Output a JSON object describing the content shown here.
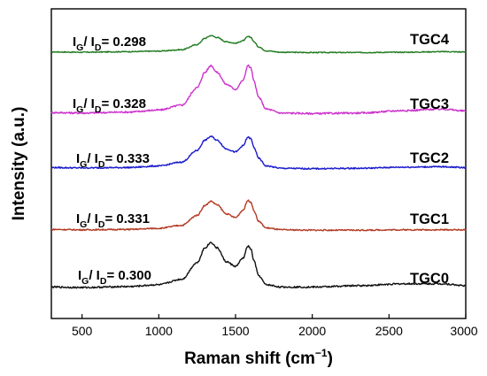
{
  "chart_data": {
    "type": "line",
    "title": "",
    "xlabel": "Raman shift (cm",
    "xlabel_sup": "−1",
    "xlabel_close": ")",
    "ylabel": "Intensity (a.u.)",
    "xlim": [
      300,
      3000
    ],
    "x_ticks": [
      500,
      1000,
      1500,
      2000,
      2500,
      3000
    ],
    "y_ticks_shown": false,
    "grid": false,
    "legend": "none",
    "series": [
      {
        "name": "TGC4",
        "color": "#1f7a1f",
        "ratio": {
          "g": "G",
          "d": "D",
          "sep": "/ I",
          "text": "= 0.298"
        },
        "x": [
          300,
          500,
          800,
          1000,
          1150,
          1250,
          1300,
          1340,
          1380,
          1440,
          1500,
          1550,
          1580,
          1600,
          1620,
          1650,
          1700,
          1800,
          2000,
          2300,
          2600,
          2850,
          3000
        ],
        "y": [
          0.04,
          0.03,
          0.05,
          0.07,
          0.12,
          0.3,
          0.52,
          0.62,
          0.55,
          0.4,
          0.35,
          0.44,
          0.58,
          0.56,
          0.4,
          0.22,
          0.08,
          0.03,
          0.02,
          0.02,
          0.03,
          0.05,
          0.04
        ]
      },
      {
        "name": "TGC3",
        "color": "#cc33cc",
        "ratio": {
          "g": "G",
          "d": "D",
          "sep": "/ I",
          "text": "= 0.328"
        },
        "x": [
          300,
          500,
          800,
          1000,
          1150,
          1250,
          1300,
          1340,
          1380,
          1440,
          1500,
          1550,
          1580,
          1600,
          1620,
          1650,
          1700,
          1800,
          2000,
          2300,
          2600,
          2850,
          3000
        ],
        "y": [
          0.05,
          0.04,
          0.06,
          0.1,
          0.2,
          0.55,
          0.86,
          1.0,
          0.86,
          0.62,
          0.52,
          0.7,
          1.0,
          0.95,
          0.68,
          0.36,
          0.12,
          0.04,
          0.03,
          0.04,
          0.09,
          0.12,
          0.08
        ]
      },
      {
        "name": "TGC2",
        "color": "#1a1acc",
        "ratio": {
          "g": "G",
          "d": "D",
          "sep": "/ I",
          "text": "= 0.333"
        },
        "x": [
          300,
          500,
          800,
          1000,
          1150,
          1250,
          1300,
          1340,
          1380,
          1440,
          1500,
          1550,
          1580,
          1600,
          1620,
          1650,
          1700,
          1800,
          2000,
          2300,
          2600,
          2850,
          3000
        ],
        "y": [
          0.06,
          0.05,
          0.06,
          0.1,
          0.2,
          0.5,
          0.76,
          0.86,
          0.76,
          0.54,
          0.46,
          0.62,
          0.84,
          0.8,
          0.58,
          0.3,
          0.1,
          0.04,
          0.03,
          0.04,
          0.07,
          0.08,
          0.06
        ]
      },
      {
        "name": "TGC1",
        "color": "#b33a22",
        "ratio": {
          "g": "G",
          "d": "D",
          "sep": "/ I",
          "text": "= 0.331"
        },
        "x": [
          300,
          500,
          800,
          1000,
          1150,
          1250,
          1300,
          1340,
          1380,
          1440,
          1500,
          1550,
          1580,
          1600,
          1620,
          1650,
          1700,
          1800,
          2000,
          2300,
          2600,
          2850,
          3000
        ],
        "y": [
          0.04,
          0.03,
          0.04,
          0.07,
          0.15,
          0.42,
          0.68,
          0.8,
          0.7,
          0.46,
          0.36,
          0.56,
          0.82,
          0.78,
          0.54,
          0.26,
          0.08,
          0.03,
          0.02,
          0.02,
          0.03,
          0.03,
          0.03
        ]
      },
      {
        "name": "TGC0",
        "color": "#111111",
        "ratio": {
          "g": "G",
          "d": "D",
          "sep": "/ I",
          "text": "= 0.300"
        },
        "x": [
          300,
          500,
          800,
          1000,
          1150,
          1250,
          1300,
          1340,
          1380,
          1440,
          1500,
          1550,
          1580,
          1600,
          1620,
          1650,
          1700,
          1800,
          2000,
          2300,
          2600,
          2850,
          3000
        ],
        "y": [
          0.03,
          0.02,
          0.04,
          0.08,
          0.2,
          0.56,
          0.88,
          1.0,
          0.88,
          0.58,
          0.48,
          0.66,
          0.92,
          0.86,
          0.6,
          0.28,
          0.08,
          0.03,
          0.03,
          0.06,
          0.1,
          0.1,
          0.06
        ]
      }
    ]
  }
}
